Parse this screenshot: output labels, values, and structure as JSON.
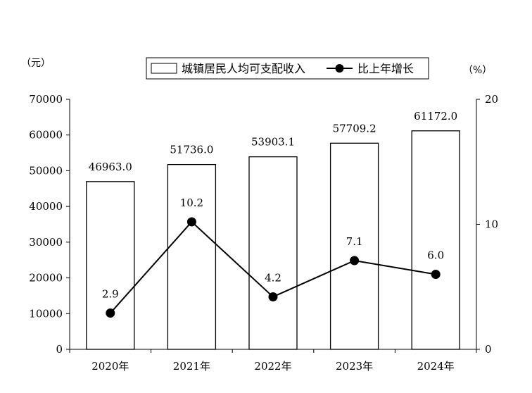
{
  "chart_data": {
    "type": "bar",
    "categories": [
      "2020年",
      "2021年",
      "2022年",
      "2023年",
      "2024年"
    ],
    "series": [
      {
        "name": "城镇居民人均可支配收入",
        "type": "bar",
        "axis": "left",
        "values": [
          46963.0,
          51736.0,
          53903.1,
          57709.2,
          61172.0
        ],
        "labels": [
          "46963.0",
          "51736.0",
          "53903.1",
          "57709.2",
          "61172.0"
        ]
      },
      {
        "name": "比上年增长",
        "type": "line",
        "axis": "right",
        "values": [
          2.9,
          10.2,
          4.2,
          7.1,
          6.0
        ],
        "labels": [
          "2.9",
          "10.2",
          "4.2",
          "7.1",
          "6.0"
        ]
      }
    ],
    "left_axis": {
      "unit": "（元）",
      "ylim": [
        0,
        70000
      ],
      "ticks": [
        "0",
        "10000",
        "20000",
        "30000",
        "40000",
        "50000",
        "60000",
        "70000"
      ]
    },
    "right_axis": {
      "unit": "（%）",
      "ylim": [
        0,
        20
      ],
      "ticks": [
        "0",
        "10",
        "20"
      ]
    },
    "legend": "top-center",
    "grid": false,
    "colors": {
      "bar_fill": "#ffffff",
      "stroke": "#000000",
      "line": "#000000",
      "marker": "#000000"
    }
  }
}
